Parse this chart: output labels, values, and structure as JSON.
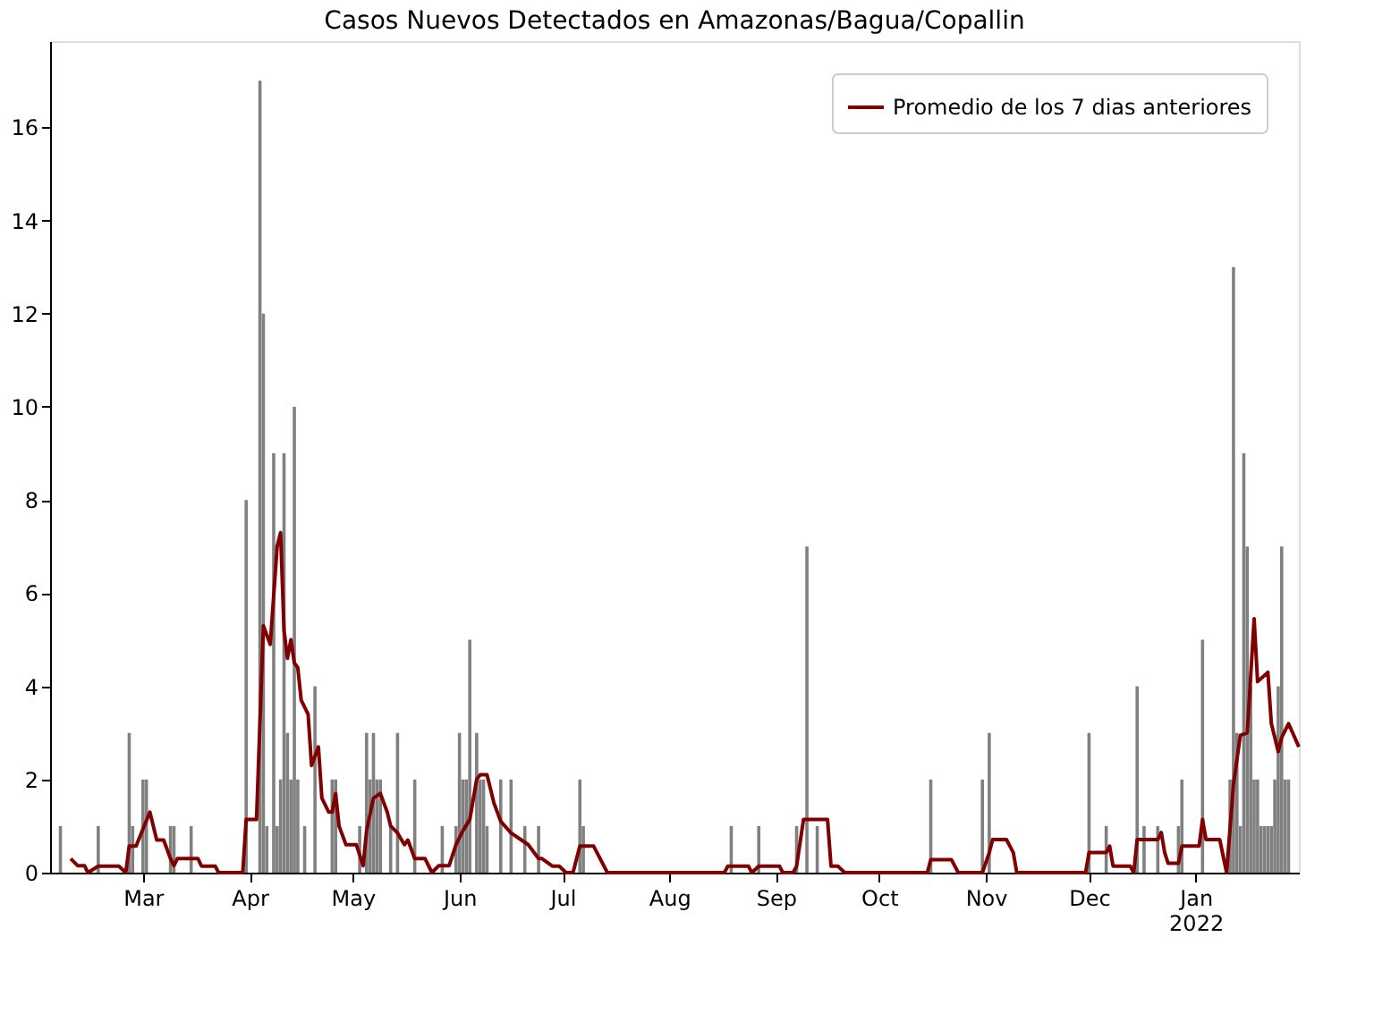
{
  "chart_data": {
    "type": "bar",
    "title": "Casos Nuevos Detectados en Amazonas/Bagua/Copallin",
    "xlim": [
      "2021-02-02",
      "2022-01-31"
    ],
    "ylim": [
      0,
      17.85
    ],
    "yticks": [
      0,
      2,
      4,
      6,
      8,
      10,
      12,
      14,
      16
    ],
    "xticks": [
      {
        "value": "2021-03-01",
        "label": "Mar"
      },
      {
        "value": "2021-04-01",
        "label": "Apr"
      },
      {
        "value": "2021-05-01",
        "label": "May"
      },
      {
        "value": "2021-06-01",
        "label": "Jun"
      },
      {
        "value": "2021-07-01",
        "label": "Jul"
      },
      {
        "value": "2021-08-01",
        "label": "Aug"
      },
      {
        "value": "2021-09-01",
        "label": "Sep"
      },
      {
        "value": "2021-10-01",
        "label": "Oct"
      },
      {
        "value": "2021-11-01",
        "label": "Nov"
      },
      {
        "value": "2021-12-01",
        "label": "Dec"
      },
      {
        "value": "2022-01-01",
        "label": "Jan\n2022"
      }
    ],
    "grid": false,
    "legend": "top right",
    "series": [
      {
        "color": "#808080",
        "x": [
          "2021-02-05",
          "2021-02-16",
          "2021-02-25",
          "2021-02-26",
          "2021-03-01",
          "2021-03-02",
          "2021-03-09",
          "2021-03-10",
          "2021-03-15",
          "2021-03-31",
          "2021-04-04",
          "2021-04-05",
          "2021-04-06",
          "2021-04-08",
          "2021-04-09",
          "2021-04-10",
          "2021-04-11",
          "2021-04-12",
          "2021-04-13",
          "2021-04-14",
          "2021-04-15",
          "2021-04-17",
          "2021-04-20",
          "2021-04-25",
          "2021-04-26",
          "2021-05-03",
          "2021-05-05",
          "2021-05-06",
          "2021-05-07",
          "2021-05-08",
          "2021-05-09",
          "2021-05-12",
          "2021-05-14",
          "2021-05-19",
          "2021-05-27",
          "2021-05-31",
          "2021-06-01",
          "2021-06-02",
          "2021-06-03",
          "2021-06-04",
          "2021-06-06",
          "2021-06-07",
          "2021-06-08",
          "2021-06-09",
          "2021-06-13",
          "2021-06-16",
          "2021-06-20",
          "2021-06-24",
          "2021-07-06",
          "2021-07-07",
          "2021-08-19",
          "2021-08-27",
          "2021-09-07",
          "2021-09-10",
          "2021-09-13",
          "2021-10-16",
          "2021-10-31",
          "2021-11-02",
          "2021-12-01",
          "2021-12-06",
          "2021-12-15",
          "2021-12-17",
          "2021-12-21",
          "2021-12-27",
          "2021-12-28",
          "2022-01-03",
          "2022-01-11",
          "2022-01-12",
          "2022-01-13",
          "2022-01-14",
          "2022-01-15",
          "2022-01-16",
          "2022-01-17",
          "2022-01-18",
          "2022-01-19",
          "2022-01-20",
          "2022-01-21",
          "2022-01-22",
          "2022-01-23",
          "2022-01-24",
          "2022-01-25",
          "2022-01-26",
          "2022-01-27",
          "2022-01-28"
        ],
        "values": [
          1,
          1,
          3,
          1,
          2,
          2,
          1,
          1,
          1,
          8,
          17,
          12,
          1,
          9,
          1,
          2,
          9,
          3,
          2,
          10,
          2,
          1,
          4,
          2,
          2,
          1,
          3,
          2,
          3,
          2,
          2,
          1,
          3,
          2,
          1,
          1,
          3,
          2,
          2,
          5,
          3,
          2,
          2,
          1,
          2,
          2,
          1,
          1,
          2,
          1,
          1,
          1,
          1,
          7,
          1,
          2,
          2,
          3,
          3,
          1,
          4,
          1,
          1,
          1,
          2,
          5,
          2,
          13,
          3,
          1,
          9,
          7,
          4,
          2,
          2,
          1,
          1,
          1,
          1,
          2,
          4,
          7,
          2,
          2
        ]
      },
      {
        "type": "line",
        "name": "Promedio de los 7 dias anteriores",
        "color": "#800000",
        "line_style": "solid",
        "marker": "none",
        "x": [
          "2021-02-08",
          "2021-02-10",
          "2021-02-12",
          "2021-02-13",
          "2021-02-16",
          "2021-02-22",
          "2021-02-24",
          "2021-02-25",
          "2021-02-27",
          "2021-03-03",
          "2021-03-05",
          "2021-03-07",
          "2021-03-09",
          "2021-03-10",
          "2021-03-11",
          "2021-03-17",
          "2021-03-18",
          "2021-03-22",
          "2021-03-23",
          "2021-03-30",
          "2021-03-31",
          "2021-04-03",
          "2021-04-05",
          "2021-04-07",
          "2021-04-09",
          "2021-04-10",
          "2021-04-11",
          "2021-04-12",
          "2021-04-13",
          "2021-04-14",
          "2021-04-15",
          "2021-04-16",
          "2021-04-18",
          "2021-04-19",
          "2021-04-21",
          "2021-04-22",
          "2021-04-24",
          "2021-04-25",
          "2021-04-26",
          "2021-04-27",
          "2021-04-29",
          "2021-05-02",
          "2021-05-04",
          "2021-05-05",
          "2021-05-07",
          "2021-05-09",
          "2021-05-11",
          "2021-05-12",
          "2021-05-14",
          "2021-05-16",
          "2021-05-17",
          "2021-05-19",
          "2021-05-22",
          "2021-05-24",
          "2021-05-26",
          "2021-05-29",
          "2021-05-31",
          "2021-06-02",
          "2021-06-04",
          "2021-06-06",
          "2021-06-07",
          "2021-06-09",
          "2021-06-11",
          "2021-06-13",
          "2021-06-16",
          "2021-06-19",
          "2021-06-21",
          "2021-06-24",
          "2021-06-25",
          "2021-06-28",
          "2021-06-30",
          "2021-07-02",
          "2021-07-04",
          "2021-07-06",
          "2021-07-10",
          "2021-07-14",
          "2021-08-17",
          "2021-08-18",
          "2021-08-24",
          "2021-08-25",
          "2021-08-27",
          "2021-09-02",
          "2021-09-03",
          "2021-09-06",
          "2021-09-07",
          "2021-09-09",
          "2021-09-16",
          "2021-09-17",
          "2021-09-19",
          "2021-09-21",
          "2021-10-15",
          "2021-10-16",
          "2021-10-22",
          "2021-10-24",
          "2021-10-31",
          "2021-11-02",
          "2021-11-03",
          "2021-11-07",
          "2021-11-09",
          "2021-11-10",
          "2021-11-30",
          "2021-12-01",
          "2021-12-06",
          "2021-12-07",
          "2021-12-08",
          "2021-12-13",
          "2021-12-14",
          "2021-12-15",
          "2021-12-21",
          "2021-12-22",
          "2021-12-23",
          "2021-12-24",
          "2021-12-27",
          "2021-12-28",
          "2022-01-02",
          "2022-01-03",
          "2022-01-04",
          "2022-01-08",
          "2022-01-10",
          "2022-01-12",
          "2022-01-14",
          "2022-01-16",
          "2022-01-18",
          "2022-01-19",
          "2022-01-22",
          "2022-01-23",
          "2022-01-25",
          "2022-01-26",
          "2022-01-28",
          "2022-01-31"
        ],
        "values": [
          0.3,
          0.15,
          0.15,
          0,
          0.14,
          0.14,
          0,
          0.57,
          0.57,
          1.3,
          0.7,
          0.7,
          0.3,
          0.15,
          0.3,
          0.3,
          0.14,
          0.14,
          0,
          0,
          1.14,
          1.14,
          5.3,
          4.9,
          7.0,
          7.3,
          5.2,
          4.6,
          5.0,
          4.5,
          4.4,
          3.7,
          3.4,
          2.3,
          2.7,
          1.6,
          1.3,
          1.3,
          1.7,
          1.0,
          0.6,
          0.6,
          0.15,
          0.9,
          1.6,
          1.7,
          1.3,
          1.0,
          0.85,
          0.6,
          0.7,
          0.3,
          0.3,
          0,
          0.15,
          0.15,
          0.6,
          0.9,
          1.14,
          2.0,
          2.1,
          2.1,
          1.5,
          1.1,
          0.85,
          0.7,
          0.6,
          0.3,
          0.3,
          0.14,
          0.14,
          0,
          0,
          0.57,
          0.57,
          0,
          0,
          0.14,
          0.14,
          0,
          0.14,
          0.14,
          0,
          0,
          0.14,
          1.14,
          1.14,
          0.14,
          0.14,
          0,
          0,
          0.28,
          0.28,
          0,
          0,
          0.43,
          0.71,
          0.71,
          0.43,
          0,
          0,
          0.43,
          0.43,
          0.57,
          0.14,
          0.14,
          0,
          0.71,
          0.71,
          0.86,
          0.43,
          0.2,
          0.2,
          0.57,
          0.57,
          1.14,
          0.71,
          0.71,
          0,
          1.9,
          2.95,
          3.0,
          5.45,
          4.1,
          4.3,
          3.2,
          2.6,
          2.9,
          3.2,
          2.7
        ]
      }
    ]
  }
}
